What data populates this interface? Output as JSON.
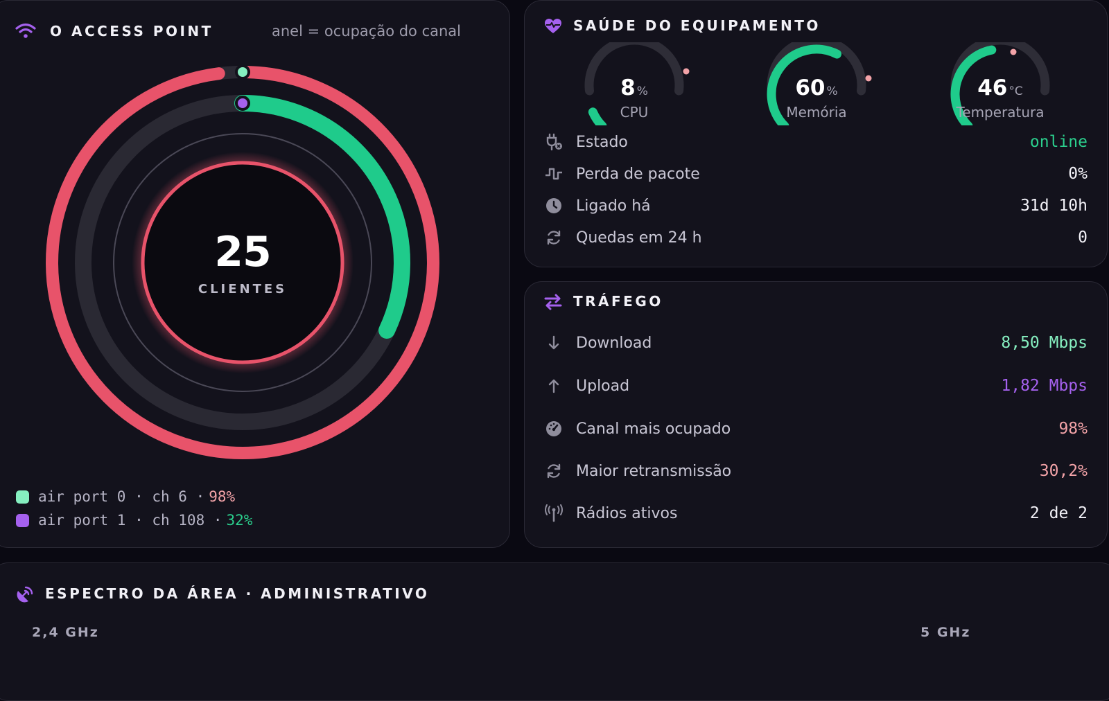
{
  "access_point": {
    "title": "O ACCESS POINT",
    "note": "anel = ocupação do canal",
    "clients_count": "25",
    "clients_label": "CLIENTES",
    "radios": [
      {
        "label": "air port 0 · ch 6 ·",
        "pct_text": "98%",
        "occupancy": 0.98,
        "swatch_color": "#86efc0",
        "pct_color": "#f3a3a8",
        "ring_color": "#e8536a"
      },
      {
        "label": "air port 1 · ch 108 ·",
        "pct_text": "32%",
        "occupancy": 0.32,
        "swatch_color": "#a561ee",
        "pct_color": "#2bcf8d",
        "ring_color": "#1fcb8b"
      }
    ]
  },
  "health": {
    "title": "SAÚDE DO EQUIPAMENTO",
    "gauges": [
      {
        "value": "8",
        "unit": "%",
        "label": "CPU",
        "fraction": 0.08
      },
      {
        "value": "60",
        "unit": "%",
        "label": "Memória",
        "fraction": 0.6
      },
      {
        "value": "46",
        "unit": "°C",
        "label": "Temperatura",
        "fraction": 0.46
      }
    ],
    "rows": [
      {
        "icon": "plug-icon",
        "label": "Estado",
        "value": "online",
        "color": "#2bcf8d"
      },
      {
        "icon": "pulse-icon",
        "label": "Perda de pacote",
        "value": "0%",
        "color": "#f2f1f7"
      },
      {
        "icon": "clock-icon",
        "label": "Ligado há",
        "value": "31d 10h",
        "color": "#f2f1f7"
      },
      {
        "icon": "refresh-icon",
        "label": "Quedas em 24 h",
        "value": "0",
        "color": "#f2f1f7"
      }
    ]
  },
  "traffic": {
    "title": "TRÁFEGO",
    "rows": [
      {
        "icon": "arrow-down-icon",
        "label": "Download",
        "value": "8,50 Mbps",
        "color": "#86efc0"
      },
      {
        "icon": "arrow-up-icon",
        "label": "Upload",
        "value": "1,82 Mbps",
        "color": "#a561ee"
      },
      {
        "icon": "gauge-icon",
        "label": "Canal mais ocupado",
        "value": "98%",
        "color": "#f3a3a8"
      },
      {
        "icon": "refresh-icon",
        "label": "Maior retransmissão",
        "value": "30,2%",
        "color": "#f3a3a8"
      },
      {
        "icon": "antenna-icon",
        "label": "Rádios ativos",
        "value": "2 de 2",
        "color": "#f2f1f7"
      }
    ]
  },
  "spectrum": {
    "title": "ESPECTRO DA ÁREA · ADMINISTRATIVO",
    "bands": [
      "2,4 GHz",
      "5 GHz"
    ]
  },
  "colors": {
    "accent_purple": "#a561ee",
    "green": "#1fcb8b",
    "red": "#e8536a",
    "card_bg": "#13121c",
    "page_bg": "#0a0912"
  }
}
